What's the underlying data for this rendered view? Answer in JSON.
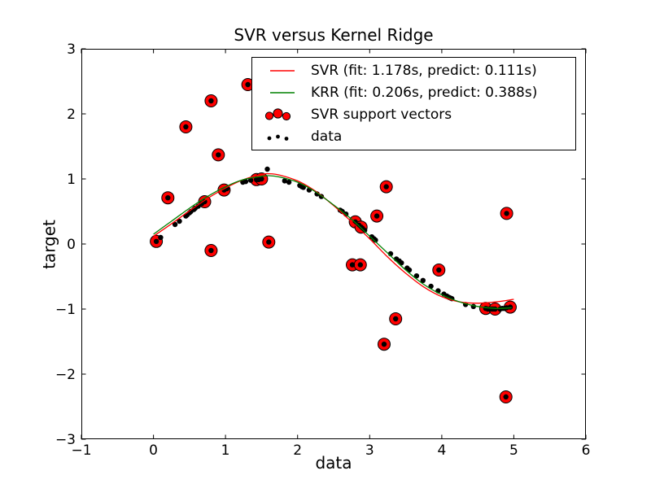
{
  "chart_data": {
    "type": "scatter",
    "title": "SVR versus Kernel Ridge",
    "xlabel": "data",
    "ylabel": "target",
    "xlim": [
      -1,
      6
    ],
    "ylim": [
      -3,
      3
    ],
    "xticks": {
      "values": [
        -1,
        0,
        1,
        2,
        3,
        4,
        5,
        6
      ],
      "labels": [
        "−1",
        "0",
        "1",
        "2",
        "3",
        "4",
        "5",
        "6"
      ]
    },
    "yticks": {
      "values": [
        -3,
        -2,
        -1,
        0,
        1,
        2,
        3
      ],
      "labels": [
        "−3",
        "−2",
        "−1",
        "0",
        "1",
        "2",
        "3"
      ]
    },
    "grid": false,
    "legend_position": "upper right",
    "axes_color": "#000000",
    "series": [
      {
        "name": "SVR (fit: 1.178s, predict: 0.111s)",
        "type": "line",
        "color": "#ff0000",
        "points": [
          [
            0,
            0.12
          ],
          [
            0.25,
            0.31
          ],
          [
            0.5,
            0.51
          ],
          [
            0.75,
            0.7
          ],
          [
            1.0,
            0.86
          ],
          [
            1.25,
            0.99
          ],
          [
            1.5,
            1.07
          ],
          [
            1.6,
            1.08
          ],
          [
            1.75,
            1.06
          ],
          [
            2.0,
            0.97
          ],
          [
            2.25,
            0.81
          ],
          [
            2.5,
            0.59
          ],
          [
            2.75,
            0.34
          ],
          [
            3.0,
            0.08
          ],
          [
            3.25,
            -0.2
          ],
          [
            3.5,
            -0.45
          ],
          [
            3.75,
            -0.66
          ],
          [
            4.0,
            -0.81
          ],
          [
            4.25,
            -0.89
          ],
          [
            4.5,
            -0.91
          ],
          [
            4.75,
            -0.89
          ],
          [
            5.0,
            -0.85
          ]
        ]
      },
      {
        "name": "KRR (fit: 0.206s, predict: 0.388s)",
        "type": "line",
        "color": "#008000",
        "points": [
          [
            0,
            0.15
          ],
          [
            0.25,
            0.35
          ],
          [
            0.5,
            0.55
          ],
          [
            0.75,
            0.73
          ],
          [
            1.0,
            0.88
          ],
          [
            1.25,
            0.99
          ],
          [
            1.5,
            1.04
          ],
          [
            1.6,
            1.05
          ],
          [
            1.75,
            1.03
          ],
          [
            2.0,
            0.95
          ],
          [
            2.25,
            0.8
          ],
          [
            2.5,
            0.6
          ],
          [
            2.75,
            0.38
          ],
          [
            3.0,
            0.12
          ],
          [
            3.25,
            -0.14
          ],
          [
            3.5,
            -0.4
          ],
          [
            3.75,
            -0.62
          ],
          [
            4.0,
            -0.78
          ],
          [
            4.25,
            -0.89
          ],
          [
            4.5,
            -0.96
          ],
          [
            4.75,
            -0.99
          ],
          [
            4.97,
            -0.98
          ]
        ]
      },
      {
        "name": "SVR support vectors",
        "type": "scatter",
        "color": "#ff0000",
        "edge_color": "#000000",
        "marker_radius": 7.5,
        "points": [
          [
            0.04,
            0.04
          ],
          [
            0.2,
            0.71
          ],
          [
            0.45,
            1.8
          ],
          [
            0.71,
            0.65
          ],
          [
            0.8,
            2.2
          ],
          [
            0.8,
            -0.1
          ],
          [
            0.9,
            1.37
          ],
          [
            0.98,
            0.83
          ],
          [
            1.31,
            2.45
          ],
          [
            1.43,
            0.99
          ],
          [
            1.5,
            1.0
          ],
          [
            1.6,
            0.03
          ],
          [
            2.76,
            -0.32
          ],
          [
            2.8,
            0.34
          ],
          [
            2.87,
            -0.32
          ],
          [
            2.88,
            0.26
          ],
          [
            3.1,
            0.43
          ],
          [
            3.2,
            -1.54
          ],
          [
            3.23,
            0.88
          ],
          [
            3.36,
            -1.15
          ],
          [
            3.96,
            -0.4
          ],
          [
            4.61,
            -0.99
          ],
          [
            4.74,
            -1.0
          ],
          [
            4.89,
            -2.35
          ],
          [
            4.9,
            0.47
          ],
          [
            4.95,
            -0.97
          ]
        ]
      },
      {
        "name": "data",
        "type": "scatter",
        "color": "#000000",
        "marker_radius": 3.2,
        "points": [
          [
            0.04,
            0.04
          ],
          [
            0.1,
            0.1
          ],
          [
            0.2,
            0.71
          ],
          [
            0.3,
            0.3
          ],
          [
            0.36,
            0.35
          ],
          [
            0.45,
            1.8
          ],
          [
            0.45,
            0.43
          ],
          [
            0.47,
            0.45
          ],
          [
            0.5,
            0.48
          ],
          [
            0.52,
            0.5
          ],
          [
            0.56,
            0.53
          ],
          [
            0.58,
            0.55
          ],
          [
            0.62,
            0.58
          ],
          [
            0.67,
            0.62
          ],
          [
            0.71,
            0.65
          ],
          [
            0.8,
            2.2
          ],
          [
            0.8,
            -0.1
          ],
          [
            0.9,
            1.37
          ],
          [
            0.98,
            0.83
          ],
          [
            1.02,
            0.85
          ],
          [
            1.24,
            0.95
          ],
          [
            1.28,
            0.96
          ],
          [
            1.31,
            2.45
          ],
          [
            1.35,
            0.98
          ],
          [
            1.43,
            0.99
          ],
          [
            1.46,
            0.99
          ],
          [
            1.5,
            1.0
          ],
          [
            1.58,
            1.15
          ],
          [
            1.6,
            0.03
          ],
          [
            1.82,
            0.97
          ],
          [
            1.88,
            0.95
          ],
          [
            2.03,
            0.9
          ],
          [
            2.06,
            0.88
          ],
          [
            2.08,
            0.87
          ],
          [
            2.16,
            0.83
          ],
          [
            2.27,
            0.77
          ],
          [
            2.33,
            0.73
          ],
          [
            2.59,
            0.52
          ],
          [
            2.62,
            0.5
          ],
          [
            2.67,
            0.46
          ],
          [
            2.76,
            -0.32
          ],
          [
            2.8,
            0.34
          ],
          [
            2.85,
            0.29
          ],
          [
            2.87,
            -0.32
          ],
          [
            2.88,
            0.26
          ],
          [
            2.9,
            0.24
          ],
          [
            2.93,
            0.21
          ],
          [
            3.03,
            0.11
          ],
          [
            3.06,
            0.08
          ],
          [
            3.08,
            0.06
          ],
          [
            3.1,
            0.43
          ],
          [
            3.2,
            -1.54
          ],
          [
            3.23,
            0.88
          ],
          [
            3.29,
            -0.15
          ],
          [
            3.36,
            -1.15
          ],
          [
            3.37,
            -0.23
          ],
          [
            3.41,
            -0.26
          ],
          [
            3.44,
            -0.29
          ],
          [
            3.52,
            -0.37
          ],
          [
            3.55,
            -0.4
          ],
          [
            3.65,
            -0.49
          ],
          [
            3.74,
            -0.56
          ],
          [
            3.85,
            -0.65
          ],
          [
            3.95,
            -0.72
          ],
          [
            3.96,
            -0.4
          ],
          [
            4.03,
            -0.77
          ],
          [
            4.07,
            -0.8
          ],
          [
            4.1,
            -0.82
          ],
          [
            4.12,
            -0.83
          ],
          [
            4.14,
            -0.84
          ],
          [
            4.33,
            -0.93
          ],
          [
            4.44,
            -0.96
          ],
          [
            4.61,
            -0.99
          ],
          [
            4.64,
            -1.0
          ],
          [
            4.68,
            -1.0
          ],
          [
            4.71,
            -1.0
          ],
          [
            4.74,
            -1.0
          ],
          [
            4.81,
            -1.0
          ],
          [
            4.84,
            -0.99
          ],
          [
            4.87,
            -0.99
          ],
          [
            4.89,
            -2.35
          ],
          [
            4.9,
            0.47
          ],
          [
            4.9,
            -0.98
          ],
          [
            4.95,
            -0.97
          ]
        ]
      }
    ]
  }
}
